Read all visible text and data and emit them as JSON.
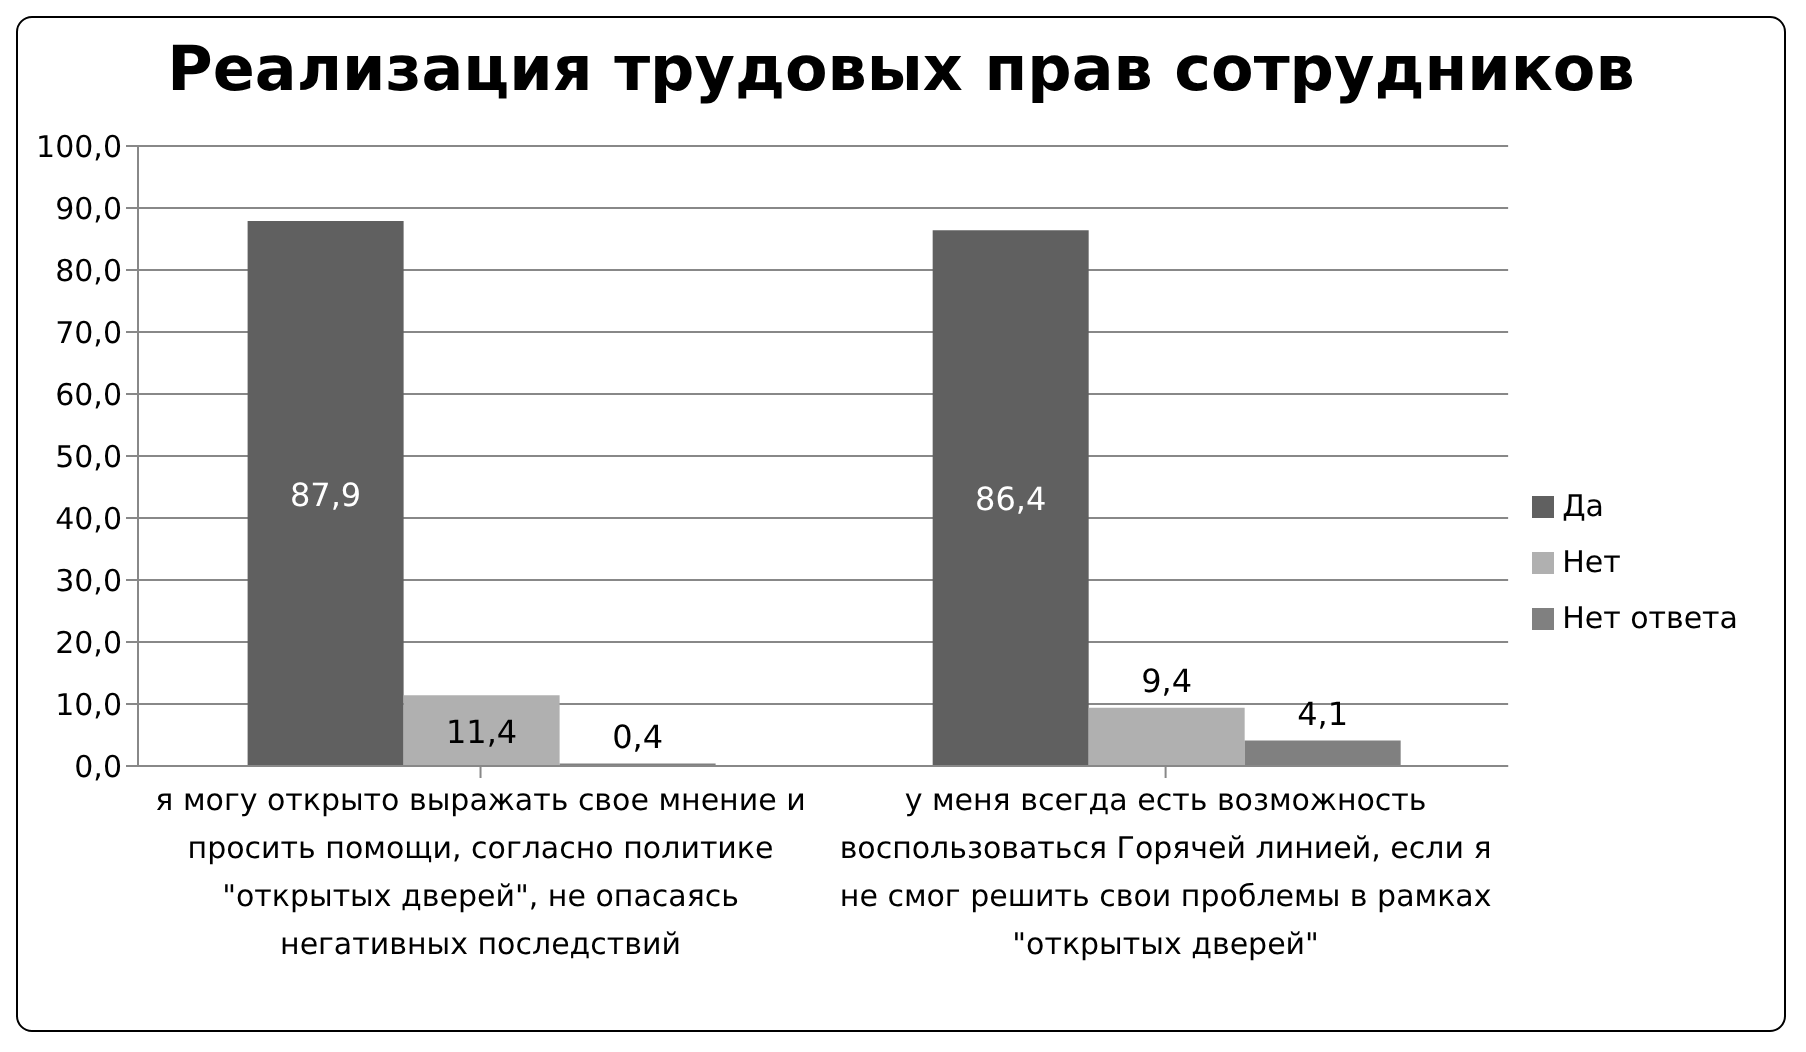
{
  "chart_data": {
    "type": "bar",
    "title": "Реализация трудовых прав сотрудников",
    "categories": [
      "я могу открыто выражать свое мнение и просить помощи, согласно политике \"открытых дверей\", не опасаясь негативных последствий",
      "у меня всегда есть возможность воспользоваться Горячей линией, если я не смог решить свои проблемы в рамках \"открытых дверей\""
    ],
    "series": [
      {
        "name": "Да",
        "color": "#606060",
        "values": [
          87.9,
          86.4
        ],
        "value_labels": [
          "87,9",
          "86,4"
        ]
      },
      {
        "name": "Нет",
        "color": "#b0b0b0",
        "values": [
          11.4,
          9.4
        ],
        "value_labels": [
          "11,4",
          "9,4"
        ]
      },
      {
        "name": "Нет ответа",
        "color": "#808080",
        "values": [
          0.4,
          4.1
        ],
        "value_labels": [
          "0,4",
          "4,1"
        ]
      }
    ],
    "ylim": [
      0,
      100
    ],
    "yticks": [
      {
        "value": 0,
        "label": "0,0"
      },
      {
        "value": 10,
        "label": "10,0"
      },
      {
        "value": 20,
        "label": "20,0"
      },
      {
        "value": 30,
        "label": "30,0"
      },
      {
        "value": 40,
        "label": "40,0"
      },
      {
        "value": 50,
        "label": "50,0"
      },
      {
        "value": 60,
        "label": "60,0"
      },
      {
        "value": 70,
        "label": "70,0"
      },
      {
        "value": 80,
        "label": "80,0"
      },
      {
        "value": 90,
        "label": "90,0"
      },
      {
        "value": 100,
        "label": "100,0"
      }
    ],
    "grid": "y",
    "legend": "right"
  }
}
